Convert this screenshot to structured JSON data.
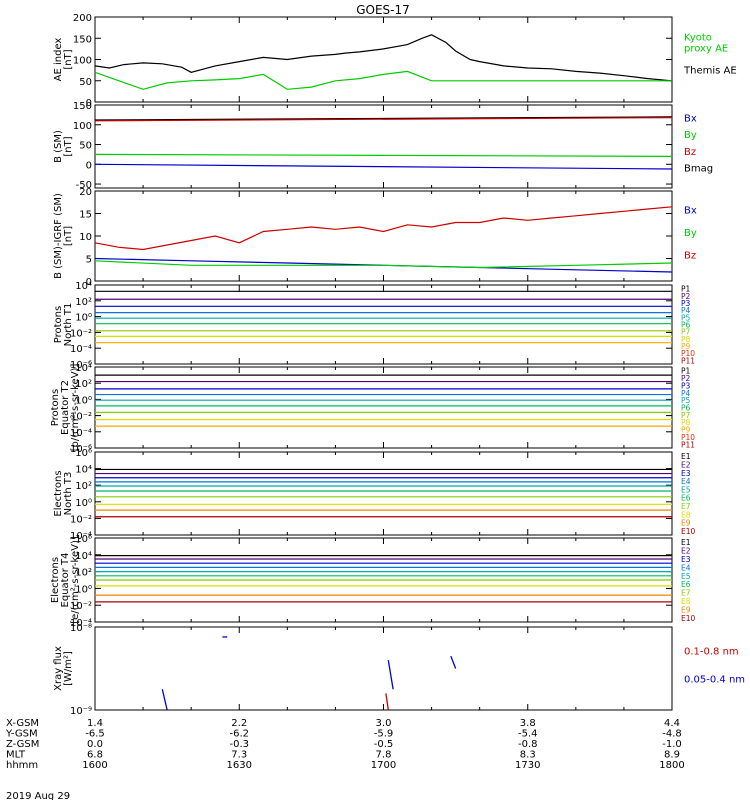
{
  "title": "GOES-17",
  "date_label": "2019 Aug 29",
  "colors": {
    "black": "#000000",
    "green": "#00cc00",
    "red": "#cc0000",
    "blue": "#0000cc",
    "darkred": "#aa0000"
  },
  "chart_data": [
    {
      "id": "ae",
      "type": "line",
      "ylabel": [
        "AE index",
        "[nT]"
      ],
      "ylim": [
        0,
        200
      ],
      "yticks": [
        "0",
        "50",
        "100",
        "150",
        "200"
      ],
      "xlim": [
        0,
        120
      ],
      "legend": [
        {
          "name": "Kyoto proxy AE",
          "lines": [
            "Kyoto",
            "proxy AE"
          ],
          "color": "#00cc00"
        },
        {
          "name": "Themis AE",
          "lines": [
            "Themis AE"
          ],
          "color": "#000000"
        }
      ],
      "series": [
        {
          "name": "Themis AE",
          "color": "#000000",
          "x": [
            0,
            3,
            6,
            10,
            14,
            18,
            20,
            25,
            30,
            35,
            40,
            45,
            50,
            52,
            55,
            60,
            65,
            68,
            70,
            73,
            75,
            78,
            80,
            85,
            90,
            95,
            100,
            105,
            110,
            115,
            120
          ],
          "y": [
            85,
            80,
            88,
            92,
            90,
            82,
            70,
            85,
            95,
            105,
            100,
            108,
            112,
            115,
            118,
            125,
            135,
            150,
            158,
            140,
            120,
            100,
            95,
            85,
            80,
            78,
            72,
            68,
            62,
            55,
            50
          ]
        },
        {
          "name": "Kyoto proxy AE",
          "color": "#00cc00",
          "x": [
            0,
            5,
            10,
            15,
            20,
            25,
            30,
            35,
            40,
            45,
            50,
            55,
            60,
            65,
            70,
            75,
            80,
            90,
            100,
            110,
            120
          ],
          "y": [
            70,
            50,
            30,
            45,
            50,
            52,
            55,
            65,
            30,
            35,
            50,
            55,
            65,
            72,
            50,
            50,
            50,
            50,
            50,
            50,
            50
          ]
        }
      ]
    },
    {
      "id": "bsm",
      "type": "line",
      "ylabel": [
        "B (SM)",
        "[nT]"
      ],
      "ylim": [
        -60,
        150
      ],
      "yticks": [
        "-50",
        "0",
        "50",
        "100",
        "150"
      ],
      "ytickvals": [
        -50,
        0,
        50,
        100,
        150
      ],
      "xlim": [
        0,
        120
      ],
      "legend": [
        {
          "name": "Bx",
          "lines": [
            "Bx"
          ],
          "color": "#0000cc"
        },
        {
          "name": "By",
          "lines": [
            "By"
          ],
          "color": "#00cc00"
        },
        {
          "name": "Bz",
          "lines": [
            "Bz"
          ],
          "color": "#cc0000"
        },
        {
          "name": "Bmag",
          "lines": [
            "Bmag"
          ],
          "color": "#000000"
        }
      ],
      "series": [
        {
          "name": "Bmag",
          "color": "#000000",
          "x": [
            0,
            120
          ],
          "y": [
            112,
            120
          ]
        },
        {
          "name": "Bz",
          "color": "#cc0000",
          "x": [
            0,
            120
          ],
          "y": [
            110,
            118
          ]
        },
        {
          "name": "By",
          "color": "#00cc00",
          "x": [
            0,
            120
          ],
          "y": [
            25,
            20
          ]
        },
        {
          "name": "Bx",
          "color": "#0000cc",
          "x": [
            0,
            120
          ],
          "y": [
            0,
            -12
          ]
        }
      ]
    },
    {
      "id": "bigrf",
      "type": "line",
      "ylabel": [
        "B (SM)-IGRF (SM)",
        "[nT]"
      ],
      "ylim": [
        0,
        20
      ],
      "yticks": [
        "0",
        "5",
        "10",
        "15",
        "20"
      ],
      "xlim": [
        0,
        120
      ],
      "legend": [
        {
          "name": "Bx",
          "lines": [
            "Bx"
          ],
          "color": "#0000cc"
        },
        {
          "name": "By",
          "lines": [
            "By"
          ],
          "color": "#00cc00"
        },
        {
          "name": "Bz",
          "lines": [
            "Bz"
          ],
          "color": "#cc0000"
        }
      ],
      "series": [
        {
          "name": "Bz",
          "color": "#cc0000",
          "x": [
            0,
            5,
            10,
            15,
            20,
            25,
            30,
            35,
            40,
            45,
            50,
            55,
            60,
            65,
            70,
            75,
            80,
            85,
            90,
            95,
            100,
            105,
            110,
            115,
            120
          ],
          "y": [
            8.5,
            7.5,
            7,
            8,
            9,
            10,
            8.5,
            11,
            11.5,
            12,
            11.5,
            12,
            11,
            12.5,
            12,
            13,
            13,
            14,
            13.5,
            14,
            14.5,
            15,
            15.5,
            16,
            16.5
          ]
        },
        {
          "name": "Bx",
          "color": "#0000cc",
          "x": [
            0,
            20,
            40,
            60,
            80,
            100,
            120
          ],
          "y": [
            5,
            4.5,
            4,
            3.5,
            3,
            2.5,
            2
          ]
        },
        {
          "name": "By",
          "color": "#00cc00",
          "x": [
            0,
            20,
            40,
            60,
            80,
            100,
            120
          ],
          "y": [
            4.5,
            3.5,
            3.5,
            3.5,
            3,
            3.5,
            4
          ]
        }
      ]
    },
    {
      "id": "pnorth",
      "type": "line",
      "scale": "log",
      "ylabel": [
        "Protons",
        "North T1"
      ],
      "ylog": [
        -6,
        4
      ],
      "yticks": [
        "10⁴",
        "10²",
        "10⁰",
        "10⁻²",
        "10⁻⁴",
        "10⁻⁶"
      ],
      "ytickexp": [
        4,
        2,
        0,
        -2,
        -4,
        -6
      ],
      "xlim": [
        0,
        120
      ],
      "channels": [
        "P1",
        "P2",
        "P3",
        "P4",
        "P5",
        "P6",
        "P7",
        "P8",
        "P9",
        "P10",
        "P11"
      ],
      "channel_colors": [
        "#000000",
        "#550077",
        "#0000cc",
        "#0077dd",
        "#00aaaa",
        "#00bb55",
        "#88cc00",
        "#dddd00",
        "#ffaa00",
        "#dd3300",
        "#aa0000"
      ],
      "levels": [
        3.2,
        2.2,
        1.3,
        0.5,
        -0.2,
        -0.9,
        -1.8,
        -2.5,
        -3.3,
        null,
        null
      ]
    },
    {
      "id": "pequator",
      "type": "line",
      "scale": "log",
      "ylabel": [
        "Protons",
        "Equator T2",
        "[p/(cm²-s-sr-keV)]"
      ],
      "ylog": [
        -6,
        4
      ],
      "yticks": [
        "10⁴",
        "10²",
        "10⁰",
        "10⁻²",
        "10⁻⁴",
        "10⁻⁶"
      ],
      "ytickexp": [
        4,
        2,
        0,
        -2,
        -4,
        -6
      ],
      "xlim": [
        0,
        120
      ],
      "channels": [
        "P1",
        "P2",
        "P3",
        "P4",
        "P5",
        "P6",
        "P7",
        "P8",
        "P9",
        "P10",
        "P11"
      ],
      "channel_colors": [
        "#000000",
        "#550077",
        "#0000cc",
        "#0077dd",
        "#00aaaa",
        "#00bb55",
        "#88cc00",
        "#dddd00",
        "#ffaa00",
        "#dd3300",
        "#aa0000"
      ],
      "levels": [
        3.0,
        2.2,
        1.3,
        0.6,
        -0.1,
        -0.8,
        -1.6,
        -2.5,
        -3.3,
        null,
        null
      ]
    },
    {
      "id": "enorth",
      "type": "line",
      "scale": "log",
      "ylabel": [
        "Electrons",
        "North T3"
      ],
      "ylog": [
        -4,
        6
      ],
      "yticks": [
        "10⁶",
        "10⁴",
        "10²",
        "10⁰",
        "10⁻²",
        "10⁻⁴"
      ],
      "ytickexp": [
        6,
        4,
        2,
        0,
        -2,
        -4
      ],
      "xlim": [
        0,
        120
      ],
      "channels": [
        "E1",
        "E2",
        "E3",
        "E4",
        "E5",
        "E6",
        "E7",
        "E8",
        "E9",
        "E10"
      ],
      "channel_colors": [
        "#000000",
        "#550077",
        "#0000cc",
        "#0077dd",
        "#00aaaa",
        "#00bb55",
        "#88cc00",
        "#dddd00",
        "#ee8800",
        "#aa0000"
      ],
      "levels": [
        3.9,
        3.4,
        2.9,
        2.4,
        1.9,
        1.3,
        0.6,
        -0.3,
        -1.0,
        -1.8
      ]
    },
    {
      "id": "eequator",
      "type": "line",
      "scale": "log",
      "ylabel": [
        "Electrons",
        "Equator T4",
        "[e/(cm²-s-sr-keV)]"
      ],
      "ylog": [
        -4,
        6
      ],
      "yticks": [
        "10⁶",
        "10⁴",
        "10²",
        "10⁰",
        "10⁻²",
        "10⁻⁴"
      ],
      "ytickexp": [
        6,
        4,
        2,
        0,
        -2,
        -4
      ],
      "xlim": [
        0,
        120
      ],
      "channels": [
        "E1",
        "E2",
        "E3",
        "E4",
        "E5",
        "E6",
        "E7",
        "E8",
        "E9",
        "E10"
      ],
      "channel_colors": [
        "#000000",
        "#550077",
        "#0000cc",
        "#0077dd",
        "#00aaaa",
        "#00bb55",
        "#88cc00",
        "#dddd00",
        "#ee8800",
        "#aa0000"
      ],
      "levels": [
        3.9,
        3.5,
        3.0,
        2.5,
        2.0,
        1.5,
        1.0,
        0.3,
        -0.8,
        -1.6
      ]
    },
    {
      "id": "xray",
      "type": "scatter",
      "scale": "log",
      "ylabel": [
        "Xray flux",
        "[W/m²]"
      ],
      "ylog": [
        -9,
        -8
      ],
      "yticks": [
        "10⁻⁸",
        "10⁻⁹"
      ],
      "ytickexp": [
        -8,
        -9
      ],
      "xlim": [
        0,
        120
      ],
      "legend": [
        {
          "name": "0.1-0.8 nm",
          "lines": [
            "0.1-0.8 nm"
          ],
          "color": "#cc0000"
        },
        {
          "name": "0.05-0.4 nm",
          "lines": [
            "0.05-0.4 nm"
          ],
          "color": "#0000cc"
        }
      ],
      "segments": [
        {
          "color": "#0000cc",
          "x": [
            26.5,
            27.5
          ],
          "y": [
            -8.12,
            -8.12
          ]
        },
        {
          "color": "#0000cc",
          "x": [
            14,
            15
          ],
          "y": [
            -8.75,
            -9.0
          ]
        },
        {
          "color": "#0000cc",
          "x": [
            61,
            62
          ],
          "y": [
            -8.4,
            -8.75
          ]
        },
        {
          "color": "#0000cc",
          "x": [
            74,
            75
          ],
          "y": [
            -8.35,
            -8.5
          ]
        },
        {
          "color": "#cc0000",
          "x": [
            60.5,
            61
          ],
          "y": [
            -8.8,
            -9.0
          ]
        }
      ]
    }
  ],
  "x_axis": {
    "rows": [
      {
        "label": "X-GSM",
        "values": [
          "1.4",
          "2.2",
          "3.0",
          "3.8",
          "4.4"
        ]
      },
      {
        "label": "Y-GSM",
        "values": [
          "-6.5",
          "-6.2",
          "-5.9",
          "-5.4",
          "-4.8"
        ]
      },
      {
        "label": "Z-GSM",
        "values": [
          "0.0",
          "-0.3",
          "-0.5",
          "-0.8",
          "-1.0"
        ]
      },
      {
        "label": "MLT",
        "values": [
          "6.8",
          "7.3",
          "7.8",
          "8.3",
          "8.9"
        ]
      },
      {
        "label": "hhmm",
        "values": [
          "1600",
          "1630",
          "1700",
          "1730",
          "1800"
        ]
      }
    ],
    "tick_x": [
      0,
      30,
      60,
      90,
      120
    ]
  }
}
